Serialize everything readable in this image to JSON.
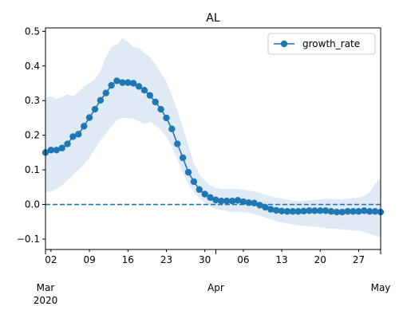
{
  "chart_data": {
    "type": "line",
    "title": "AL",
    "xlabel": "",
    "ylabel": "",
    "x_start": "2020-03-01",
    "x_end": "2020-05-01",
    "xlim": [
      "2020-03-01",
      "2020-05-01"
    ],
    "ylim": [
      -0.13,
      0.51
    ],
    "y_ticks": [
      -0.1,
      0.0,
      0.1,
      0.2,
      0.3,
      0.4,
      0.5
    ],
    "y_tick_labels": [
      "−0.1",
      "0.0",
      "0.1",
      "0.2",
      "0.3",
      "0.4",
      "0.5"
    ],
    "x_minor_ticks": [
      {
        "date": "2020-03-02",
        "label": "02"
      },
      {
        "date": "2020-03-09",
        "label": "09"
      },
      {
        "date": "2020-03-16",
        "label": "16"
      },
      {
        "date": "2020-03-23",
        "label": "23"
      },
      {
        "date": "2020-03-30",
        "label": "30"
      },
      {
        "date": "2020-04-06",
        "label": "06"
      },
      {
        "date": "2020-04-13",
        "label": "13"
      },
      {
        "date": "2020-04-20",
        "label": "20"
      },
      {
        "date": "2020-04-27",
        "label": "27"
      }
    ],
    "x_major_ticks": [
      {
        "date": "2020-03-01",
        "label": "Mar",
        "sublabel": "2020"
      },
      {
        "date": "2020-04-01",
        "label": "Apr",
        "sublabel": ""
      },
      {
        "date": "2020-05-01",
        "label": "May",
        "sublabel": ""
      }
    ],
    "reference_line": {
      "y": 0.0,
      "style": "dashed",
      "color": "#1f77b4"
    },
    "legend": {
      "placement": "top-right",
      "entries": [
        "growth_rate"
      ]
    },
    "colors": {
      "series": "#1f77b4",
      "band": "#dfeaf5"
    },
    "series": [
      {
        "name": "growth_rate",
        "x": [
          "2020-03-01",
          "2020-03-02",
          "2020-03-03",
          "2020-03-04",
          "2020-03-05",
          "2020-03-06",
          "2020-03-07",
          "2020-03-08",
          "2020-03-09",
          "2020-03-10",
          "2020-03-11",
          "2020-03-12",
          "2020-03-13",
          "2020-03-14",
          "2020-03-15",
          "2020-03-16",
          "2020-03-17",
          "2020-03-18",
          "2020-03-19",
          "2020-03-20",
          "2020-03-21",
          "2020-03-22",
          "2020-03-23",
          "2020-03-24",
          "2020-03-25",
          "2020-03-26",
          "2020-03-27",
          "2020-03-28",
          "2020-03-29",
          "2020-03-30",
          "2020-03-31",
          "2020-04-01",
          "2020-04-02",
          "2020-04-03",
          "2020-04-04",
          "2020-04-05",
          "2020-04-06",
          "2020-04-07",
          "2020-04-08",
          "2020-04-09",
          "2020-04-10",
          "2020-04-11",
          "2020-04-12",
          "2020-04-13",
          "2020-04-14",
          "2020-04-15",
          "2020-04-16",
          "2020-04-17",
          "2020-04-18",
          "2020-04-19",
          "2020-04-20",
          "2020-04-21",
          "2020-04-22",
          "2020-04-23",
          "2020-04-24",
          "2020-04-25",
          "2020-04-26",
          "2020-04-27",
          "2020-04-28",
          "2020-04-29",
          "2020-04-30",
          "2020-05-01"
        ],
        "values": [
          0.15,
          0.157,
          0.157,
          0.163,
          0.175,
          0.196,
          0.203,
          0.226,
          0.251,
          0.275,
          0.301,
          0.322,
          0.344,
          0.357,
          0.352,
          0.352,
          0.35,
          0.341,
          0.33,
          0.315,
          0.296,
          0.275,
          0.25,
          0.218,
          0.175,
          0.135,
          0.093,
          0.066,
          0.043,
          0.03,
          0.02,
          0.013,
          0.01,
          0.01,
          0.01,
          0.012,
          0.008,
          0.005,
          0.004,
          -0.002,
          -0.008,
          -0.014,
          -0.017,
          -0.019,
          -0.02,
          -0.02,
          -0.02,
          -0.019,
          -0.018,
          -0.018,
          -0.018,
          -0.018,
          -0.02,
          -0.022,
          -0.022,
          -0.02,
          -0.02,
          -0.02,
          -0.018,
          -0.02,
          -0.02,
          -0.022
        ],
        "lower": [
          0.035,
          0.038,
          0.045,
          0.055,
          0.07,
          0.085,
          0.1,
          0.115,
          0.135,
          0.16,
          0.185,
          0.205,
          0.225,
          0.245,
          0.25,
          0.25,
          0.248,
          0.24,
          0.232,
          0.238,
          0.228,
          0.215,
          0.195,
          0.165,
          0.13,
          0.092,
          0.058,
          0.036,
          0.018,
          0.005,
          -0.005,
          -0.012,
          -0.016,
          -0.019,
          -0.022,
          -0.022,
          -0.022,
          -0.024,
          -0.028,
          -0.032,
          -0.038,
          -0.043,
          -0.048,
          -0.052,
          -0.055,
          -0.058,
          -0.06,
          -0.062,
          -0.063,
          -0.064,
          -0.066,
          -0.068,
          -0.07,
          -0.07,
          -0.072,
          -0.074,
          -0.075,
          -0.076,
          -0.08,
          -0.085,
          -0.09,
          -0.095
        ],
        "upper": [
          0.31,
          0.312,
          0.305,
          0.31,
          0.318,
          0.312,
          0.325,
          0.34,
          0.35,
          0.362,
          0.385,
          0.425,
          0.455,
          0.462,
          0.48,
          0.47,
          0.455,
          0.452,
          0.438,
          0.425,
          0.405,
          0.38,
          0.355,
          0.315,
          0.272,
          0.222,
          0.17,
          0.12,
          0.088,
          0.068,
          0.055,
          0.048,
          0.045,
          0.045,
          0.045,
          0.045,
          0.043,
          0.04,
          0.038,
          0.033,
          0.028,
          0.024,
          0.02,
          0.017,
          0.014,
          0.011,
          0.01,
          0.01,
          0.012,
          0.013,
          0.015,
          0.016,
          0.016,
          0.015,
          0.015,
          0.016,
          0.018,
          0.02,
          0.025,
          0.035,
          0.06,
          0.075
        ]
      }
    ]
  }
}
